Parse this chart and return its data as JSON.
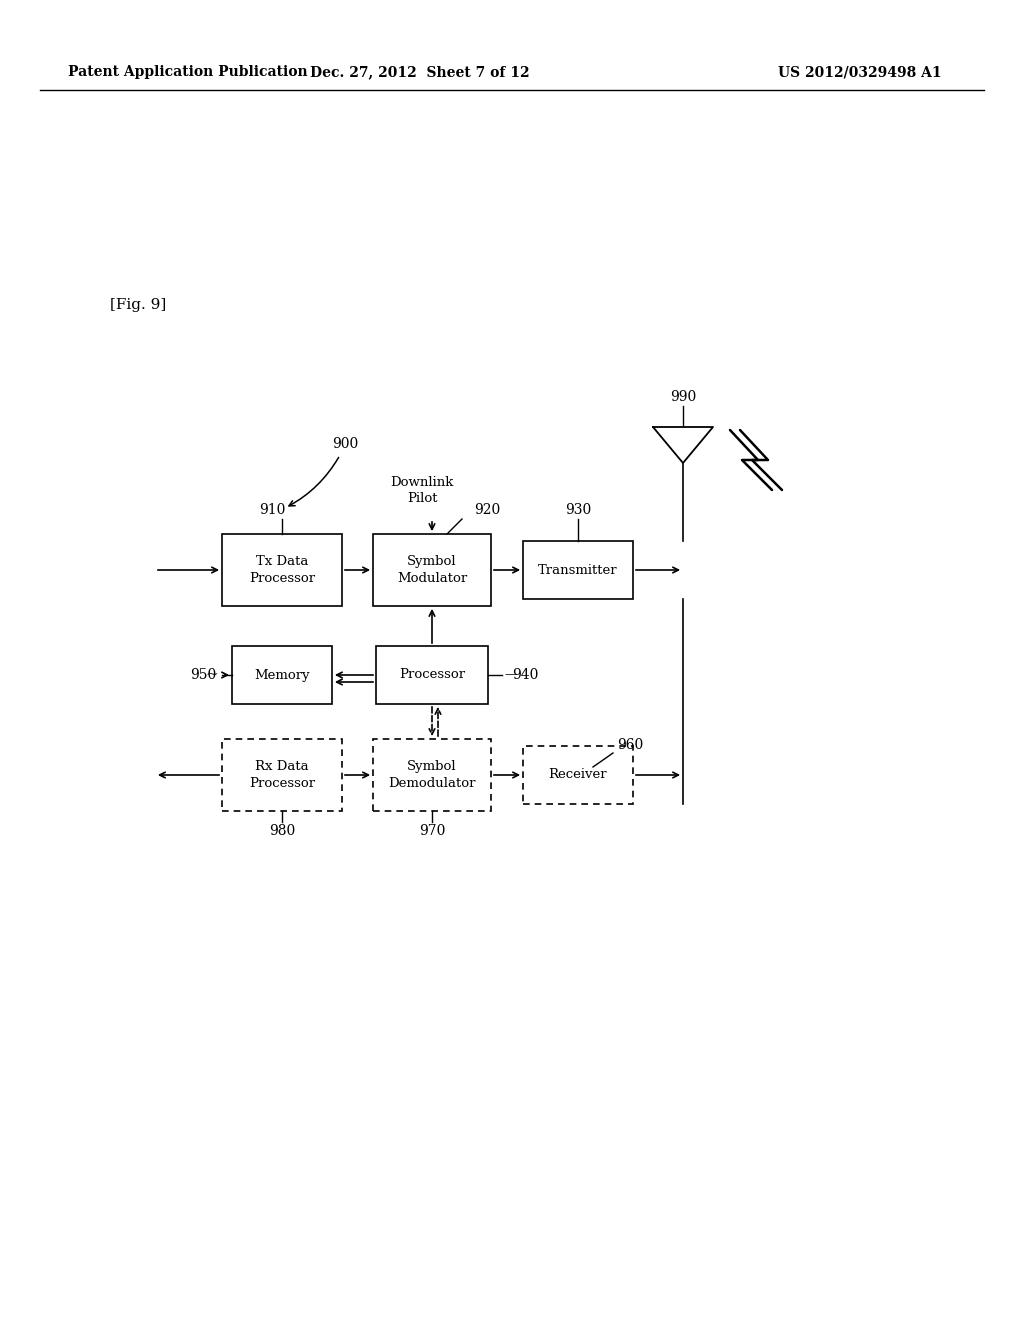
{
  "header_left": "Patent Application Publication",
  "header_mid": "Dec. 27, 2012  Sheet 7 of 12",
  "header_right": "US 2012/0329498 A1",
  "fig_label": "[Fig. 9]",
  "label_900": "900",
  "label_910": "910",
  "label_920": "920",
  "label_930": "930",
  "label_940": "940",
  "label_950": "950",
  "label_960": "960",
  "label_970": "970",
  "label_980": "980",
  "label_990": "990",
  "downlink_pilot": "Downlink\nPilot",
  "box_tx": "Tx Data\nProcessor",
  "box_sym_mod": "Symbol\nModulator",
  "box_transmitter": "Transmitter",
  "box_memory": "Memory",
  "box_processor": "Processor",
  "box_rx": "Rx Data\nProcessor",
  "box_sym_demod": "Symbol\nDemodulator",
  "box_receiver": "Receiver",
  "bg_color": "#ffffff",
  "box_color": "#ffffff",
  "box_edge_color": "#000000",
  "text_color": "#000000",
  "arrow_color": "#000000"
}
